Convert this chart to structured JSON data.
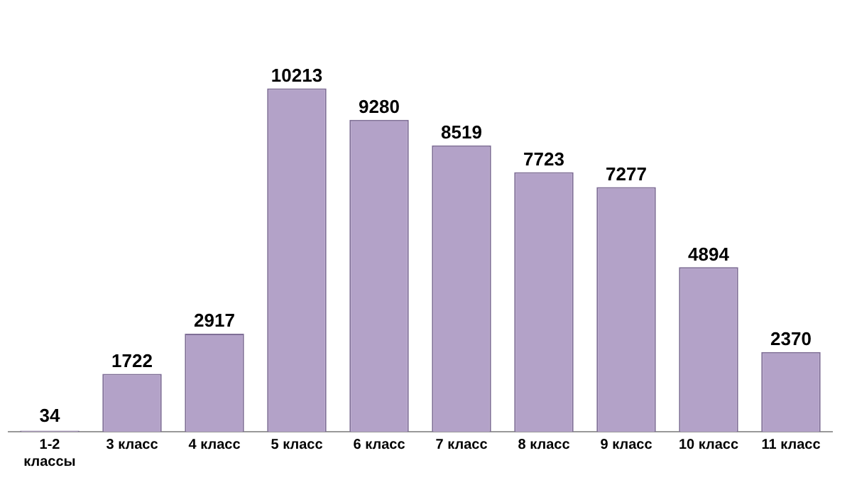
{
  "chart_data": {
    "type": "bar",
    "categories": [
      "1-2 классы",
      "3 класс",
      "4 класс",
      "5 класс",
      "6 класс",
      "7 класс",
      "8 класс",
      "9 класс",
      "10 класс",
      "11 класс"
    ],
    "values": [
      34,
      1722,
      2917,
      10213,
      9280,
      8519,
      7723,
      7277,
      4894,
      2370
    ],
    "color": "#b3a2c8",
    "data_labels": true,
    "grid": false,
    "legend": false,
    "tick_labels": "x"
  }
}
